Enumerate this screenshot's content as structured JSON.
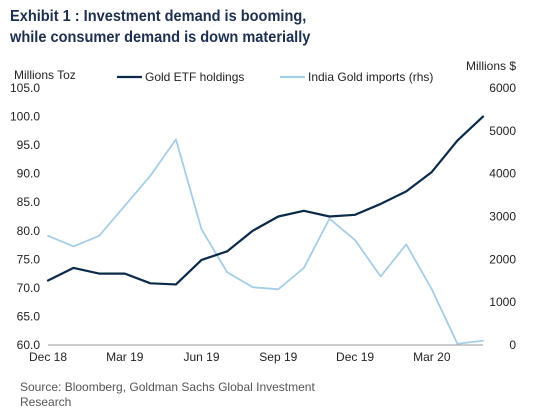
{
  "header": {
    "title_line1": "Exhibit 1 : Investment demand is booming,",
    "title_line2": "while consumer demand is down materially"
  },
  "source": "Source: Bloomberg, Goldman Sachs Global Investment Research",
  "chart_data": {
    "type": "line",
    "ylabel_left": "Millions Toz",
    "ylabel_right": "Millions $",
    "ylim_left": [
      60,
      105
    ],
    "ylim_right": [
      0,
      6000
    ],
    "yticks_left": [
      "105.0",
      "100.0",
      "95.0",
      "90.0",
      "85.0",
      "80.0",
      "75.0",
      "70.0",
      "65.0",
      "60.0"
    ],
    "yticks_right": [
      "6000",
      "5000",
      "4000",
      "3000",
      "2000",
      "1000",
      "0"
    ],
    "x_tick_labels": [
      "Dec 18",
      "Mar 19",
      "Jun 19",
      "Sep 19",
      "Dec 19",
      "Mar 20"
    ],
    "x": [
      "Dec 18",
      "Jan 19",
      "Feb 19",
      "Mar 19",
      "Apr 19",
      "May 19",
      "Jun 19",
      "Jul 19",
      "Aug 19",
      "Sep 19",
      "Oct 19",
      "Nov 19",
      "Dec 19",
      "Jan 20",
      "Feb 20",
      "Mar 20",
      "Apr 20",
      "May 20"
    ],
    "grid": false,
    "legend_position": "top",
    "series": [
      {
        "name": "Gold ETF holdings",
        "axis": "left",
        "color": "#0b2a4a",
        "values": [
          71.3,
          73.5,
          72.5,
          72.5,
          70.8,
          70.6,
          74.9,
          76.4,
          80.0,
          82.5,
          83.5,
          82.5,
          82.8,
          84.7,
          86.9,
          90.3,
          95.8,
          100.0
        ]
      },
      {
        "name": "India Gold imports (rhs)",
        "axis": "right",
        "color": "#a6cde6",
        "values": [
          2550,
          2300,
          2550,
          3250,
          3950,
          4800,
          2700,
          1700,
          1350,
          1300,
          1800,
          2950,
          2450,
          1600,
          2350,
          1300,
          30,
          100
        ]
      }
    ]
  }
}
